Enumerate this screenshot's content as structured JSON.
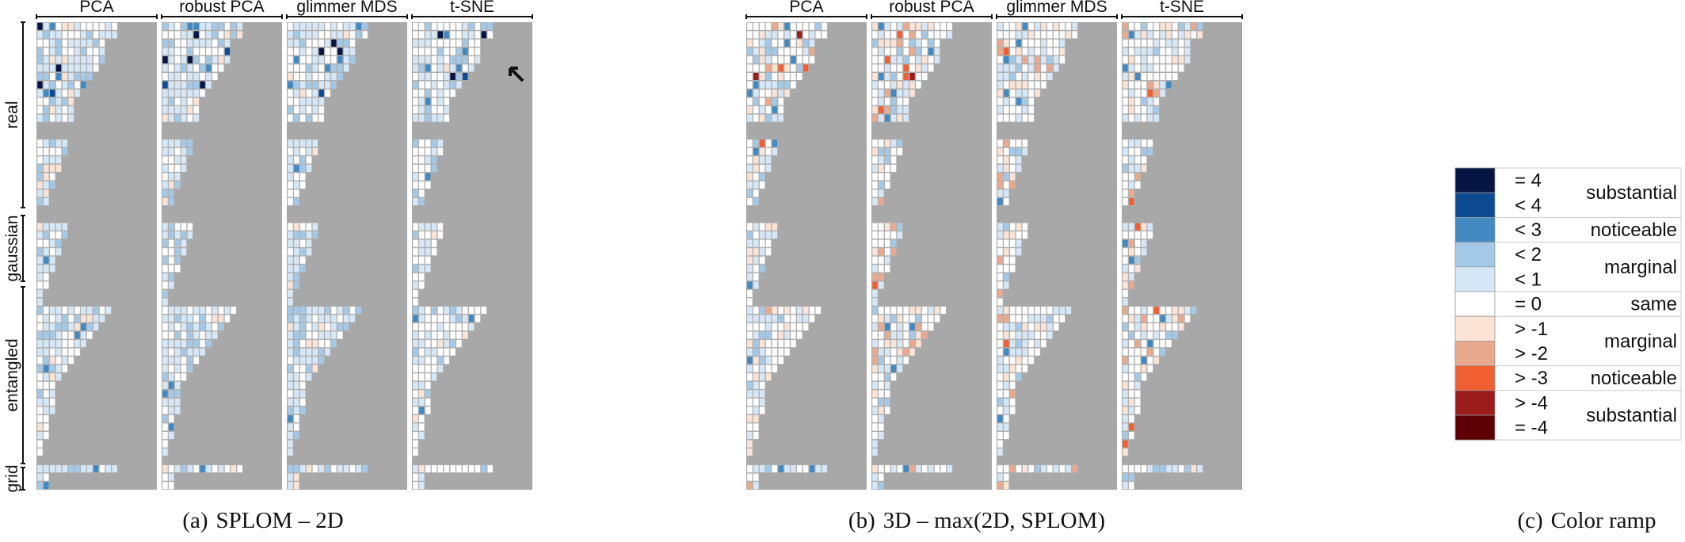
{
  "chart_data": [
    {
      "type": "heatmap",
      "caption_label": "(a)",
      "caption_text": "SPLOM – 2D",
      "methods": [
        "PCA",
        "robust PCA",
        "glimmer MDS",
        "t-SNE"
      ],
      "groups": [
        "real",
        "gaussian",
        "entangled",
        "grid"
      ],
      "mode": "splom2d"
    },
    {
      "type": "heatmap",
      "caption_label": "(b)",
      "caption_text": "3D – max(2D, SPLOM)",
      "methods": [
        "PCA",
        "robust PCA",
        "glimmer MDS",
        "t-SNE"
      ],
      "groups": [],
      "mode": "diff3d"
    }
  ],
  "legend": {
    "caption_label": "(c)",
    "caption_text": "Color ramp",
    "levels": [
      {
        "label": "= 4",
        "value": 4,
        "color": "#061541"
      },
      {
        "label": "< 4",
        "value": 3.5,
        "color": "#0d4c92"
      },
      {
        "label": "< 3",
        "value": 2.5,
        "color": "#4389c1"
      },
      {
        "label": "< 2",
        "value": 1.5,
        "color": "#a4c9e7"
      },
      {
        "label": "< 1",
        "value": 0.5,
        "color": "#d6e8f7"
      },
      {
        "label": "= 0",
        "value": 0,
        "color": "#ffffff"
      },
      {
        "label": "> -1",
        "value": -0.5,
        "color": "#fbe3d6"
      },
      {
        "label": "> -2",
        "value": -1.5,
        "color": "#e8a98e"
      },
      {
        "label": "> -3",
        "value": -2.5,
        "color": "#f06032"
      },
      {
        "label": "> -4",
        "value": -3.5,
        "color": "#9c1b1b"
      },
      {
        "label": "= -4",
        "value": -4,
        "color": "#5c0006"
      }
    ],
    "categories": [
      {
        "label": "substantial",
        "from": 0,
        "to": 1
      },
      {
        "label": "noticeable",
        "from": 2,
        "to": 2
      },
      {
        "label": "marginal",
        "from": 3,
        "to": 4
      },
      {
        "label": "same",
        "from": 5,
        "to": 5
      },
      {
        "label": "marginal",
        "from": 6,
        "to": 7
      },
      {
        "label": "noticeable",
        "from": 8,
        "to": 8
      },
      {
        "label": "substantial",
        "from": 9,
        "to": 10
      }
    ]
  },
  "colors": {
    "background_cell": "#a8a8a8",
    "cell_border": "#b5b5b5"
  }
}
